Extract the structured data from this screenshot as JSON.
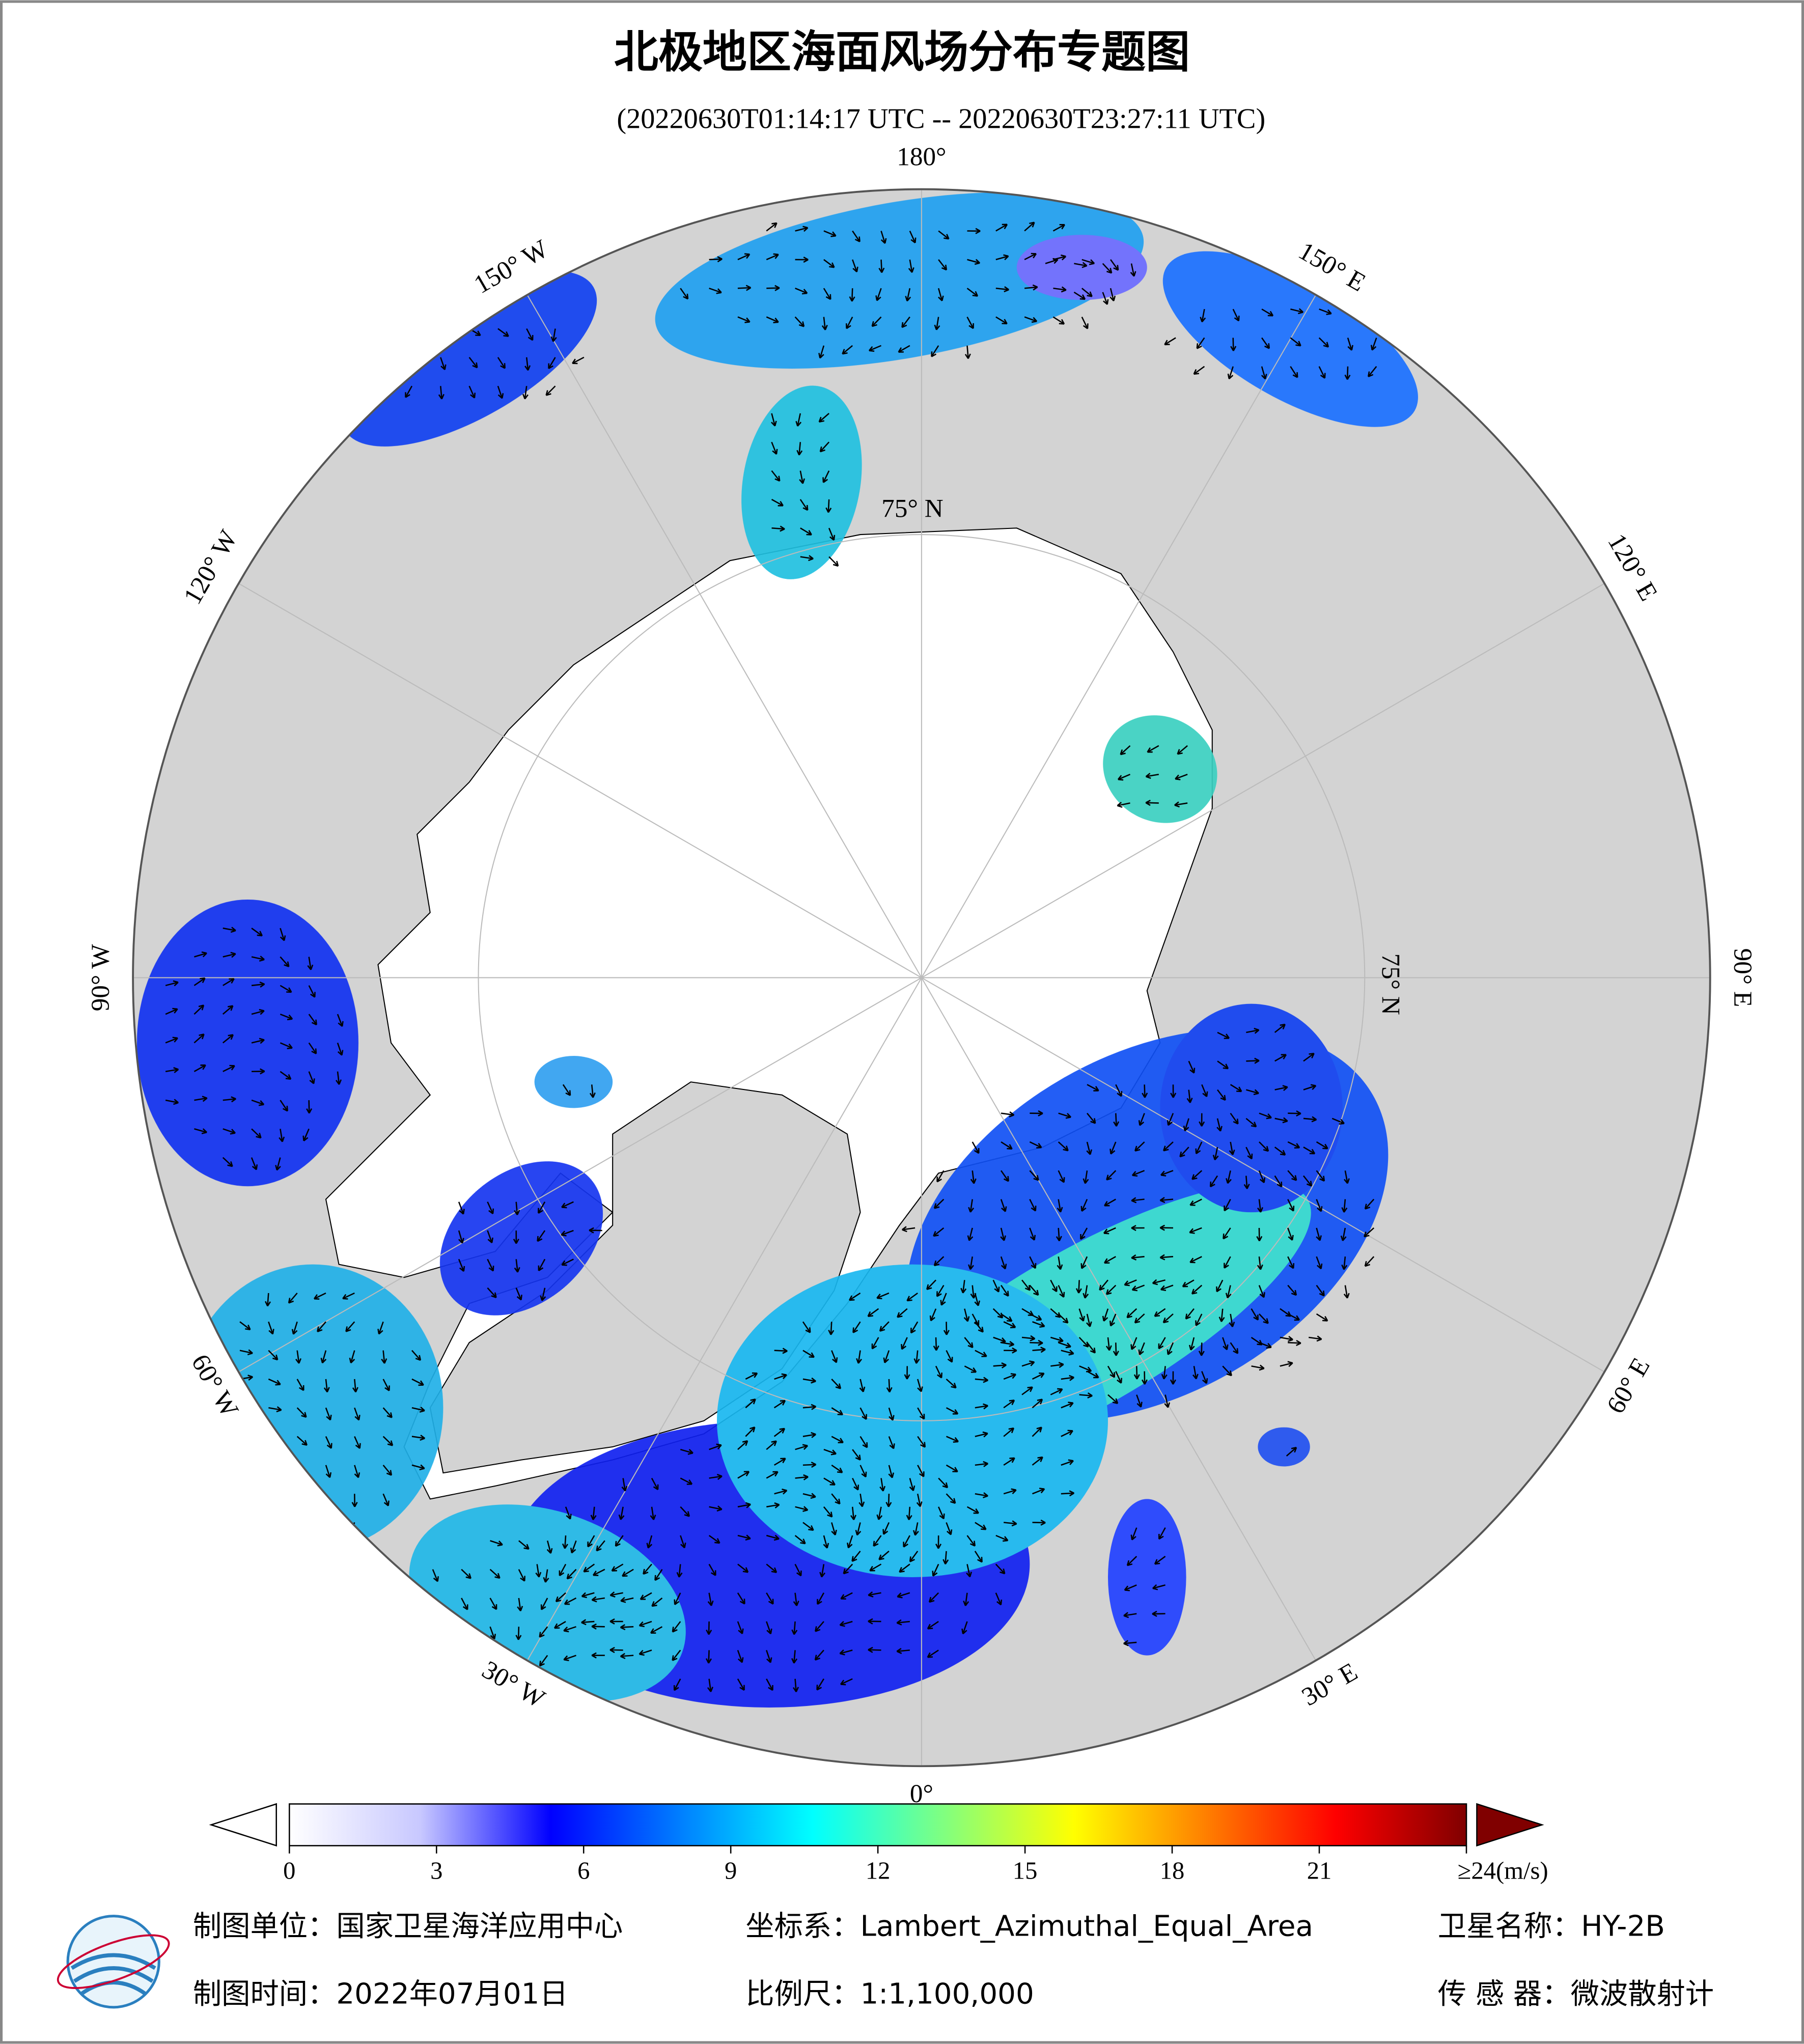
{
  "header": {
    "title": "北极地区海面风场分布专题图",
    "subtitle": "(20220630T01:14:17 UTC -- 20220630T23:27:11 UTC)"
  },
  "map": {
    "longitude_labels": [
      {
        "value": 180,
        "label": "180°"
      },
      {
        "value": 150,
        "label": "150° E"
      },
      {
        "value": 120,
        "label": "120° E"
      },
      {
        "value": 90,
        "label": "90° E"
      },
      {
        "value": 60,
        "label": "60° E"
      },
      {
        "value": 30,
        "label": "30° E"
      },
      {
        "value": 0,
        "label": "0°"
      },
      {
        "value": -30,
        "label": "30° W"
      },
      {
        "value": -60,
        "label": "60° W"
      },
      {
        "value": -90,
        "label": "90° W"
      },
      {
        "value": -120,
        "label": "120° W"
      },
      {
        "value": -150,
        "label": "150° W"
      }
    ],
    "latitude_labels": [
      "75° N",
      "75° N"
    ]
  },
  "colorbar": {
    "range": [
      0,
      24
    ],
    "ticks": [
      0,
      3,
      6,
      9,
      12,
      15,
      18,
      21,
      {
        "value": 24,
        "label": "≥24(m/s)"
      }
    ],
    "colors": [
      "#ffffff",
      "#c8c8ff",
      "#0000ff",
      "#0080ff",
      "#00ffff",
      "#80ff80",
      "#ffff00",
      "#ff8000",
      "#ff0000",
      "#800000"
    ]
  },
  "footer": {
    "unit": "制图单位：国家卫星海洋应用中心",
    "projection": "坐标系：Lambert_Azimuthal_Equal_Area",
    "satellite": "卫星名称：HY-2B",
    "date": "制图时间：2022年07月01日",
    "scale": "比例尺：1:1,100,000",
    "sensor": "传 感 器：微波散射计"
  }
}
